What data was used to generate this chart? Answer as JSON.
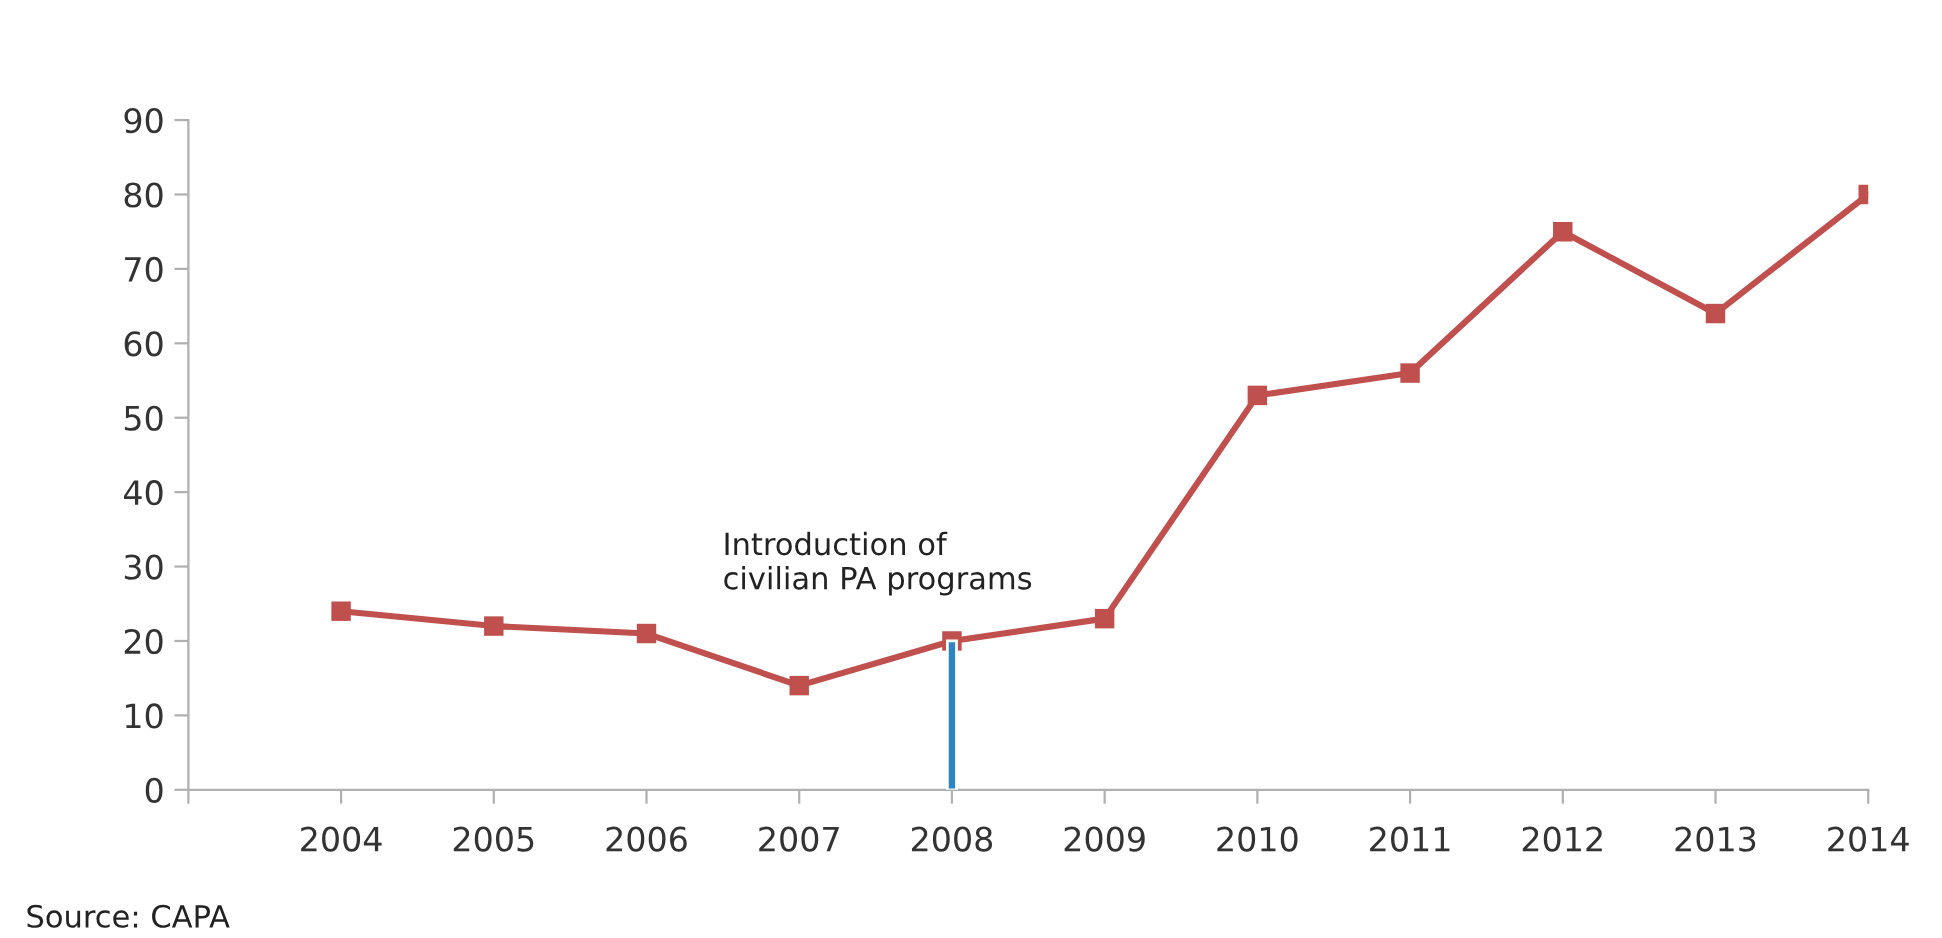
{
  "chart_data": {
    "type": "line",
    "x": [
      2004,
      2005,
      2006,
      2007,
      2008,
      2009,
      2010,
      2011,
      2012,
      2013,
      2014
    ],
    "series": [
      {
        "color": "#c0504d",
        "values": [
          24,
          22,
          21,
          14,
          20,
          23,
          53,
          56,
          75,
          64,
          80
        ],
        "marker": "square"
      },
      {
        "type": "bar",
        "color": "#2e86c1",
        "x": [
          2008
        ],
        "values": [
          20
        ]
      }
    ],
    "xlim": [
      2003,
      2014
    ],
    "xticks": [
      {
        "value": 2003,
        "label": null
      },
      2004,
      2005,
      2006,
      2007,
      2008,
      2009,
      2010,
      2011,
      2012,
      2013,
      2014
    ],
    "ylim": [
      0,
      90
    ],
    "yticks": [
      0,
      10,
      20,
      30,
      40,
      50,
      60,
      70,
      80,
      90
    ],
    "grid": false,
    "legend": false,
    "annotations": [
      "Introduction of\ncivilian PA programs",
      "Source: CAPA"
    ]
  }
}
